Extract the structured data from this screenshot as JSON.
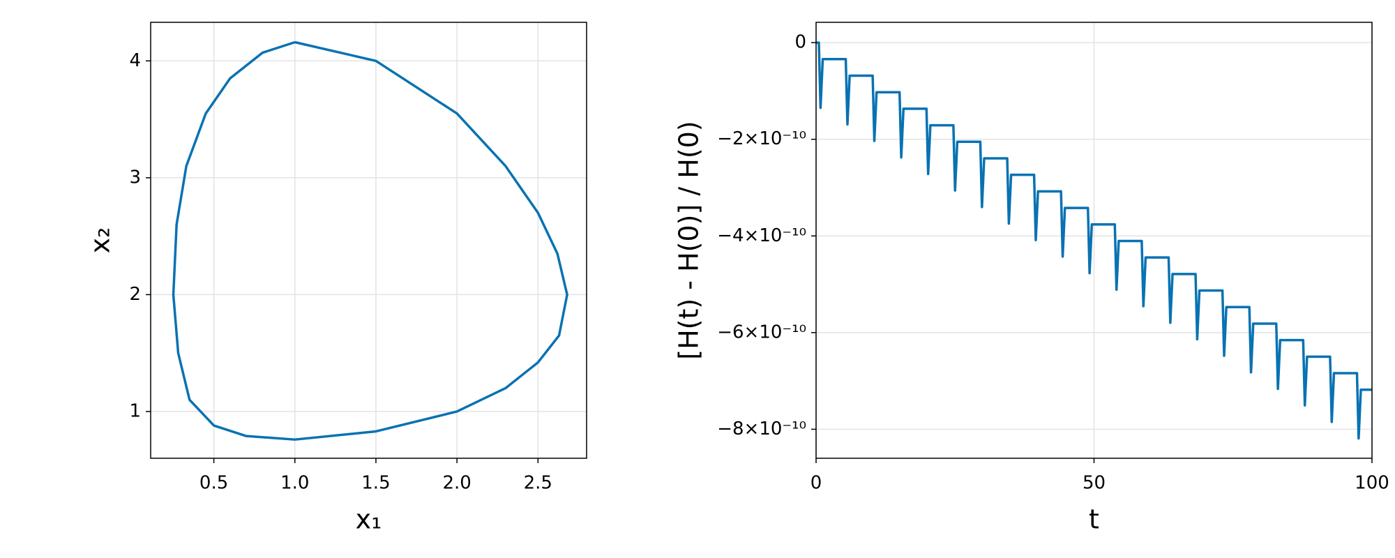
{
  "chart_data": [
    {
      "type": "line",
      "xlabel": "x₁",
      "ylabel": "x₂",
      "x": [
        1.0,
        1.5,
        2.0,
        2.3,
        2.5,
        2.62,
        2.68,
        2.63,
        2.5,
        2.3,
        2.0,
        1.5,
        1.0,
        0.7,
        0.5,
        0.35,
        0.28,
        0.25,
        0.27,
        0.33,
        0.45,
        0.6,
        0.8,
        1.0
      ],
      "series": [
        {
          "color": "#0872b2",
          "values": [
            4.16,
            4.0,
            3.55,
            3.1,
            2.7,
            2.35,
            2.0,
            1.65,
            1.42,
            1.2,
            1.0,
            0.83,
            0.76,
            0.79,
            0.88,
            1.1,
            1.5,
            2.0,
            2.6,
            3.1,
            3.55,
            3.85,
            4.07,
            4.16
          ]
        }
      ],
      "xlim": [
        0.11,
        2.8
      ],
      "xticks": [
        0.5,
        {
          "value": 1,
          "label": "1.0"
        },
        1.5,
        {
          "value": 2,
          "label": "2.0"
        },
        2.5
      ],
      "ylim": [
        0.6,
        4.33
      ],
      "yticks": [
        1,
        2,
        3,
        4
      ],
      "grid": true
    },
    {
      "type": "line",
      "xlabel": "t",
      "ylabel": "[H(t) - H(0)] / H(0)",
      "x": [
        0,
        0.5,
        0.8,
        1.2,
        5.34,
        5.64,
        6.04,
        10.18,
        10.48,
        10.88,
        15.02,
        15.32,
        15.72,
        19.86,
        20.16,
        20.56,
        24.7,
        25,
        25.4,
        29.54,
        29.84,
        30.24,
        34.38,
        34.68,
        35.08,
        39.22,
        39.52,
        39.92,
        44.06,
        44.36,
        44.76,
        48.9,
        49.2,
        49.6,
        53.74,
        54.04,
        54.44,
        58.58,
        58.88,
        59.28,
        63.42,
        63.72,
        64.12,
        68.26,
        68.56,
        68.96,
        73.1,
        73.4,
        73.8,
        77.94,
        78.24,
        78.64,
        82.78,
        83.08,
        83.48,
        87.62,
        87.92,
        88.32,
        92.46,
        92.76,
        93.16,
        97.3,
        97.6,
        98.0,
        100
      ],
      "series": [
        {
          "color": "#0872b2",
          "values": [
            0,
            0,
            -1.35e-10,
            -3.42e-11,
            -3.42e-11,
            -1.692e-10,
            -6.84e-11,
            -6.84e-11,
            -2.034e-10,
            -1.026e-10,
            -1.026e-10,
            -2.376e-10,
            -1.368e-10,
            -1.368e-10,
            -2.718e-10,
            -1.71e-10,
            -1.71e-10,
            -3.06e-10,
            -2.052e-10,
            -2.052e-10,
            -3.402e-10,
            -2.394e-10,
            -2.394e-10,
            -3.744e-10,
            -2.736e-10,
            -2.736e-10,
            -4.086e-10,
            -3.078e-10,
            -3.078e-10,
            -4.428e-10,
            -3.42e-10,
            -3.42e-10,
            -4.77e-10,
            -3.762e-10,
            -3.762e-10,
            -5.112e-10,
            -4.104e-10,
            -4.104e-10,
            -5.454e-10,
            -4.446e-10,
            -4.446e-10,
            -5.796e-10,
            -4.788e-10,
            -4.788e-10,
            -6.138e-10,
            -5.13e-10,
            -5.13e-10,
            -6.48e-10,
            -5.472e-10,
            -5.472e-10,
            -6.822e-10,
            -5.814e-10,
            -5.814e-10,
            -7.164e-10,
            -6.156e-10,
            -6.156e-10,
            -7.506e-10,
            -6.498e-10,
            -6.498e-10,
            -7.848e-10,
            -6.84e-10,
            -6.84e-10,
            -8.19e-10,
            -7.182e-10,
            -7.182e-10
          ]
        }
      ],
      "xlim": [
        0,
        100
      ],
      "xticks": [
        0,
        50,
        100
      ],
      "ylim": [
        -8.6e-10,
        4.2e-11
      ],
      "yticks": [
        0,
        {
          "value": -2e-10,
          "label": "−2×10⁻¹⁰"
        },
        {
          "value": -4e-10,
          "label": "−4×10⁻¹⁰"
        },
        {
          "value": -6e-10,
          "label": "−6×10⁻¹⁰"
        },
        {
          "value": -8e-10,
          "label": "−8×10⁻¹⁰"
        }
      ],
      "grid": true
    }
  ]
}
